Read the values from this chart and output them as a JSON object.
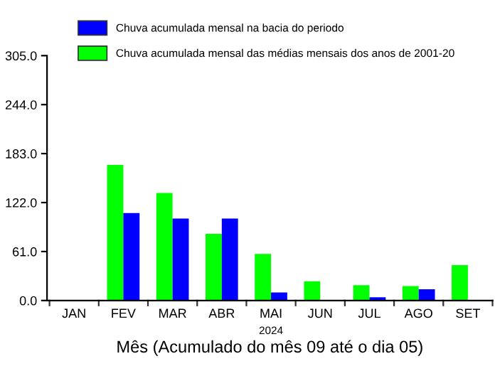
{
  "chart_data": {
    "type": "bar",
    "categories": [
      "JAN",
      "FEV",
      "MAR",
      "ABR",
      "MAI",
      "JUN",
      "JUL",
      "AGO",
      "SET"
    ],
    "series": [
      {
        "name": "Chuva acumulada mensal das médias mensais dos anos de 2001-20",
        "color": "#00ff00",
        "values": [
          null,
          169,
          134,
          83,
          58,
          24,
          19,
          18,
          44
        ]
      },
      {
        "name": "Chuva acumulada mensal na bacia do periodo",
        "color": "#0000ff",
        "values": [
          null,
          109,
          102,
          102,
          10,
          null,
          4,
          14,
          null
        ]
      }
    ],
    "xlabel": "Mês (Acumulado do mês 09 até o dia 05)",
    "annotations": [
      "2024"
    ],
    "ylim": [
      0,
      305
    ],
    "yticks": [
      {
        "value": 0,
        "label": "0.0"
      },
      {
        "value": 61,
        "label": "61.0"
      },
      {
        "value": 122,
        "label": "122.0"
      },
      {
        "value": 183,
        "label": "183.0"
      },
      {
        "value": 244,
        "label": "244.0"
      },
      {
        "value": 305,
        "label": "305.0"
      }
    ],
    "legend": "top left"
  }
}
